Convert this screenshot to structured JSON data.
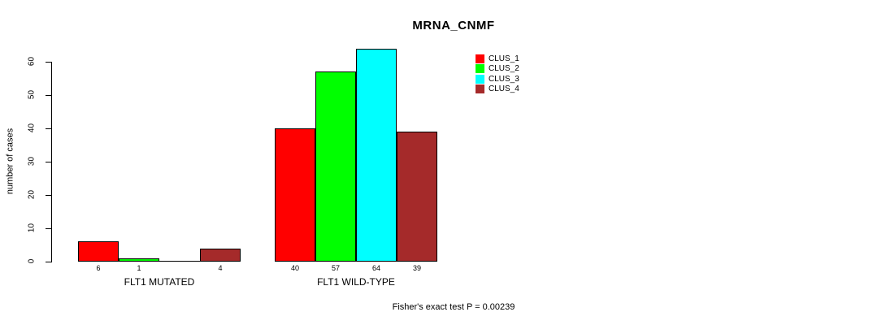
{
  "chart_data": {
    "type": "bar",
    "title": "MRNA_CNMF",
    "ylabel": "number of cases",
    "xlabel": "",
    "ylim": [
      0,
      60
    ],
    "yticks": [
      0,
      10,
      20,
      30,
      40,
      50,
      60
    ],
    "grid": false,
    "legend_position": "top-right-outside",
    "categories": [
      "FLT1 MUTATED",
      "FLT1 WILD-TYPE"
    ],
    "series": [
      {
        "name": "CLUS_1",
        "color": "#ff0000",
        "values": [
          6,
          40
        ]
      },
      {
        "name": "CLUS_2",
        "color": "#00ff00",
        "values": [
          1,
          57
        ]
      },
      {
        "name": "CLUS_3",
        "color": "#00ffff",
        "values": [
          0,
          64
        ]
      },
      {
        "name": "CLUS_4",
        "color": "#a52a2a",
        "values": [
          4,
          39
        ]
      }
    ],
    "bar_value_labels_shown": true,
    "bar_value_labels_hide_zero": true,
    "annotation": "Fisher's exact test P = 0.00239"
  },
  "colors": {
    "background": "#ffffff",
    "axis": "#000000",
    "text": "#000000"
  }
}
